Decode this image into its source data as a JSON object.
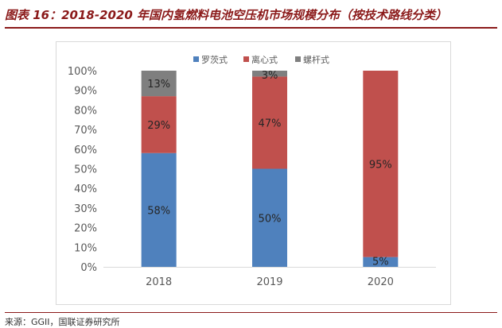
{
  "figure_title": "图表 16：2018-2020 年国内氢燃料电池空压机市场规模分布（按技术路线分类）",
  "source": "来源：GGII，国联证券研究所",
  "chart_data": {
    "type": "bar",
    "stacked": true,
    "categories": [
      "2018",
      "2019",
      "2020"
    ],
    "series": [
      {
        "name": "罗茨式",
        "values": [
          58,
          50,
          5
        ],
        "labels": [
          "58%",
          "50%",
          "5%"
        ],
        "color": "#4f81bd"
      },
      {
        "name": "离心式",
        "values": [
          29,
          47,
          95
        ],
        "labels": [
          "29%",
          "47%",
          "95%"
        ],
        "color": "#c0504d"
      },
      {
        "name": "螺杆式",
        "values": [
          13,
          3,
          0
        ],
        "labels": [
          "13%",
          "3%",
          ""
        ],
        "color": "#7f7f7f"
      }
    ],
    "y_ticks": [
      "0%",
      "10%",
      "20%",
      "30%",
      "40%",
      "50%",
      "60%",
      "70%",
      "80%",
      "90%",
      "100%"
    ],
    "ylim": [
      0,
      100
    ],
    "legend_position": "top",
    "grid": false
  }
}
